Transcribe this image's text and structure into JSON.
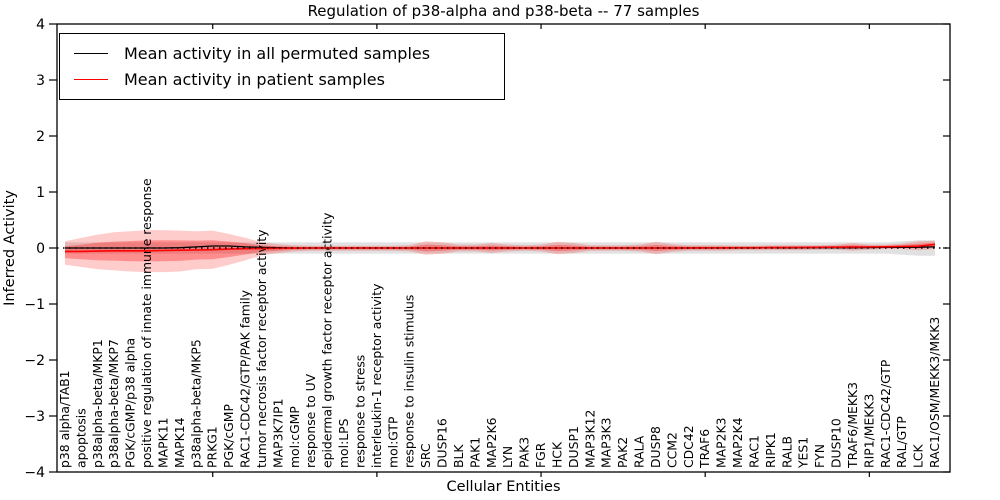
{
  "chart_data": {
    "type": "line",
    "title": "Regulation of p38-alpha and p38-beta -- 77 samples",
    "xlabel": "Cellular Entities",
    "ylabel": "Inferred Activity",
    "ylim": [
      -4,
      4
    ],
    "yticks": [
      4,
      3,
      2,
      1,
      0,
      -1,
      -2,
      -3,
      -4
    ],
    "ytick_labels": [
      "4",
      "3",
      "2",
      "1",
      "0",
      "−1",
      "−2",
      "−3",
      "−4"
    ],
    "xtick_mark_indices": [
      9,
      19,
      29,
      39,
      49
    ],
    "legend_position": "upper left",
    "grid": false,
    "zero_line": {
      "style": "dotted",
      "color": "#000000",
      "y": 0
    },
    "categories": [
      "p38 alpha/TAB1",
      "apoptosis",
      "p38alpha-beta/MKP1",
      "p38alpha-beta/MKP7",
      "PGK/cGMP/p38 alpha",
      "positive regulation of innate immune response",
      "MAPK11",
      "MAPK14",
      "p38alpha-beta/MKP5",
      "PRKG1",
      "PGK/cGMP",
      "RAC1-CDC42/GTP/PAK family",
      "tumor necrosis factor receptor activity",
      "MAP3K7IP1",
      "mol:cGMP",
      "response to UV",
      "epidermal growth factor receptor activity",
      "mol:LPS",
      "response to stress",
      "interleukin-1 receptor activity",
      "mol:GTP",
      "response to insulin stimulus",
      "SRC",
      "DUSP16",
      "BLK",
      "PAK1",
      "MAP2K6",
      "LYN",
      "PAK3",
      "FGR",
      "HCK",
      "DUSP1",
      "MAP3K12",
      "MAP3K3",
      "PAK2",
      "RALA",
      "DUSP8",
      "CCM2",
      "CDC42",
      "TRAF6",
      "MAP2K3",
      "MAP2K4",
      "RAC1",
      "RIPK1",
      "RALB",
      "YES1",
      "FYN",
      "DUSP10",
      "TRAF6/MEKK3",
      "RIP1/MEKK3",
      "RAC1-CDC42/GTP",
      "RAL/GTP",
      "LCK",
      "RAC1/OSM/MEKK3/MKK3"
    ],
    "series": [
      {
        "name": "Mean activity in all permuted samples",
        "color": "#000000",
        "values": [
          0,
          0,
          0,
          0,
          0,
          0,
          0,
          0.005,
          0.02,
          0.035,
          0.035,
          0.02,
          0.01,
          0.005,
          0,
          0,
          0,
          0,
          0,
          0,
          0,
          0,
          0,
          0,
          0,
          0,
          0,
          0,
          0,
          0,
          0,
          0,
          0,
          0,
          0,
          0,
          0,
          0,
          0,
          0,
          0,
          0,
          0,
          0.003,
          0.004,
          0.005,
          0.005,
          0.006,
          0.006,
          0.008,
          0.01,
          0.012,
          0.015,
          0.02
        ]
      },
      {
        "name": "Mean activity in patient samples",
        "color": "#ff0000",
        "values": [
          -0.06,
          -0.06,
          -0.055,
          -0.05,
          -0.05,
          -0.05,
          -0.045,
          -0.04,
          -0.035,
          -0.03,
          -0.02,
          -0.012,
          -0.008,
          -0.005,
          -0.002,
          0,
          0,
          0,
          0,
          0,
          0,
          0,
          0,
          0,
          0,
          0,
          0,
          0,
          0,
          0,
          0,
          0,
          0,
          0,
          0,
          0,
          0,
          0,
          0.002,
          0.003,
          0.004,
          0.005,
          0.006,
          0.007,
          0.009,
          0.01,
          0.012,
          0.015,
          0.016,
          0.018,
          0.022,
          0.026,
          0.032,
          0.065
        ]
      }
    ],
    "bands": [
      {
        "name": "permuted-samples-std-band",
        "color": "#c8c8c8",
        "opacity": 0.55,
        "upper": [
          0.1,
          0.1,
          0.1,
          0.1,
          0.1,
          0.1,
          0.1,
          0.1,
          0.1,
          0.1,
          0.1,
          0.1,
          0.1,
          0.1,
          0.1,
          0.1,
          0.1,
          0.1,
          0.1,
          0.1,
          0.1,
          0.1,
          0.1,
          0.1,
          0.1,
          0.1,
          0.1,
          0.1,
          0.1,
          0.1,
          0.1,
          0.1,
          0.1,
          0.1,
          0.1,
          0.1,
          0.1,
          0.1,
          0.1,
          0.1,
          0.1,
          0.1,
          0.1,
          0.1,
          0.1,
          0.1,
          0.1,
          0.1,
          0.1,
          0.1,
          0.1,
          0.12,
          0.14,
          0.14
        ],
        "lower": [
          -0.1,
          -0.1,
          -0.1,
          -0.1,
          -0.1,
          -0.1,
          -0.1,
          -0.1,
          -0.1,
          -0.1,
          -0.1,
          -0.1,
          -0.1,
          -0.1,
          -0.1,
          -0.1,
          -0.1,
          -0.1,
          -0.1,
          -0.1,
          -0.1,
          -0.1,
          -0.1,
          -0.1,
          -0.1,
          -0.1,
          -0.1,
          -0.1,
          -0.1,
          -0.1,
          -0.1,
          -0.1,
          -0.1,
          -0.1,
          -0.1,
          -0.1,
          -0.1,
          -0.1,
          -0.1,
          -0.1,
          -0.1,
          -0.1,
          -0.1,
          -0.1,
          -0.1,
          -0.1,
          -0.1,
          -0.1,
          -0.1,
          -0.1,
          -0.1,
          -0.12,
          -0.14,
          -0.14
        ]
      },
      {
        "name": "patient-samples-std-band",
        "color": "#ff0000",
        "opacity": 0.2,
        "upper": [
          0.12,
          0.18,
          0.24,
          0.28,
          0.3,
          0.32,
          0.32,
          0.31,
          0.3,
          0.31,
          0.25,
          0.18,
          0.1,
          0.07,
          0.05,
          0.04,
          0.04,
          0.04,
          0.04,
          0.04,
          0.04,
          0.05,
          0.12,
          0.1,
          0.06,
          0.06,
          0.09,
          0.06,
          0.05,
          0.06,
          0.11,
          0.09,
          0.05,
          0.05,
          0.05,
          0.06,
          0.11,
          0.07,
          0.05,
          0.05,
          0.05,
          0.04,
          0.04,
          0.05,
          0.05,
          0.05,
          0.05,
          0.06,
          0.09,
          0.06,
          0.06,
          0.08,
          0.12,
          0.13
        ],
        "lower": [
          -0.3,
          -0.34,
          -0.38,
          -0.4,
          -0.42,
          -0.43,
          -0.43,
          -0.42,
          -0.38,
          -0.37,
          -0.3,
          -0.22,
          -0.13,
          -0.09,
          -0.06,
          -0.05,
          -0.05,
          -0.05,
          -0.05,
          -0.05,
          -0.05,
          -0.06,
          -0.12,
          -0.1,
          -0.06,
          -0.06,
          -0.09,
          -0.06,
          -0.05,
          -0.06,
          -0.11,
          -0.09,
          -0.05,
          -0.05,
          -0.05,
          -0.06,
          -0.11,
          -0.07,
          -0.05,
          -0.05,
          -0.05,
          -0.04,
          -0.04,
          -0.04,
          -0.04,
          -0.04,
          -0.03,
          -0.03,
          -0.05,
          -0.03,
          -0.02,
          -0.02,
          -0.04,
          -0.02
        ]
      }
    ]
  }
}
